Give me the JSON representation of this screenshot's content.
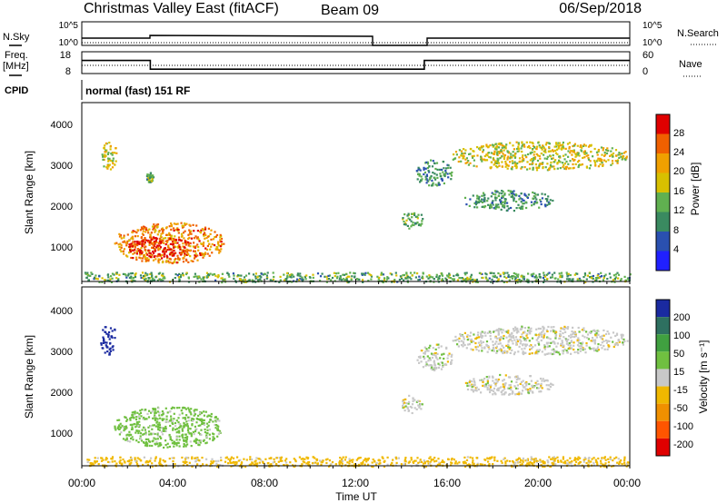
{
  "header": {
    "title": "Christmas Valley East (fitACF)",
    "beam": "Beam 09",
    "date": "06/Sep/2018"
  },
  "nsky_panel": {
    "label": "N.Sky",
    "right_label": "N.Search",
    "yticks_left": [
      "10^5",
      "10^0"
    ],
    "yticks_right": [
      "10^5",
      "10^0"
    ]
  },
  "freq_panel": {
    "label_line1": "Freq.",
    "label_line2": "[MHz]",
    "right_label": "Nave",
    "yticks_left": [
      "18",
      "8"
    ],
    "yticks_right": [
      "60",
      "0"
    ]
  },
  "cpid_panel": {
    "label": "CPID",
    "mode_text": "normal (fast) 151 RF"
  },
  "power_panel": {
    "ylabel": "Slant Range [km]",
    "yticks": [
      "4000",
      "3000",
      "2000",
      "1000"
    ],
    "colorbar_label": "Power [dB]",
    "colorbar_ticks": [
      "28",
      "24",
      "20",
      "16",
      "12",
      "8",
      "4"
    ]
  },
  "velocity_panel": {
    "ylabel": "Slant Range [km]",
    "yticks": [
      "4000",
      "3000",
      "2000",
      "1000"
    ],
    "colorbar_label": "Velocity [m s⁻¹]",
    "colorbar_ticks": [
      "200",
      "100",
      "50",
      "15",
      "-15",
      "-50",
      "-100",
      "-200"
    ]
  },
  "xaxis": {
    "label": "Time UT",
    "ticks": [
      "00:00",
      "04:00",
      "08:00",
      "12:00",
      "16:00",
      "20:00",
      "00:00"
    ]
  },
  "colors": {
    "power_scale": [
      "#2020ff",
      "#2a50b0",
      "#3a8a60",
      "#60b050",
      "#d8c000",
      "#f0a000",
      "#f06000",
      "#e00000"
    ],
    "velocity_scale": [
      "#e00000",
      "#ff5500",
      "#f09000",
      "#f0b800",
      "#c8c8c8",
      "#70c040",
      "#40a040",
      "#2e7060",
      "#1a2aa0"
    ]
  },
  "chart_data": [
    {
      "type": "heatmap",
      "title": "Power",
      "xlabel": "Time UT",
      "ylabel": "Slant Range [km]",
      "xlim": [
        "00:00",
        "24:00"
      ],
      "ylim": [
        180,
        4600
      ],
      "colorbar": {
        "label": "Power [dB]",
        "range": [
          0,
          30
        ],
        "ticks": [
          4,
          8,
          12,
          16,
          20,
          24,
          28
        ]
      },
      "regions": [
        {
          "t0": 0.1,
          "t1": 24.0,
          "r0": 180,
          "r1": 420,
          "power_db": 12
        },
        {
          "t0": 1.4,
          "t1": 6.2,
          "r0": 650,
          "r1": 1650,
          "power_db": 22
        },
        {
          "t0": 2.0,
          "t1": 4.8,
          "r0": 800,
          "r1": 1300,
          "power_db": 29
        },
        {
          "t0": 0.8,
          "t1": 1.5,
          "r0": 2950,
          "r1": 3700,
          "power_db": 18
        },
        {
          "t0": 2.8,
          "t1": 3.1,
          "r0": 2650,
          "r1": 2900,
          "power_db": 12
        },
        {
          "t0": 14.6,
          "t1": 16.2,
          "r0": 2550,
          "r1": 3200,
          "power_db": 10
        },
        {
          "t0": 16.2,
          "t1": 23.9,
          "r0": 2950,
          "r1": 3650,
          "power_db": 17
        },
        {
          "t0": 16.7,
          "t1": 20.6,
          "r0": 1950,
          "r1": 2450,
          "power_db": 10
        },
        {
          "t0": 14.0,
          "t1": 14.9,
          "r0": 1500,
          "r1": 1950,
          "power_db": 12
        }
      ]
    },
    {
      "type": "heatmap",
      "title": "Velocity",
      "xlabel": "Time UT",
      "ylabel": "Slant Range [km]",
      "xlim": [
        "00:00",
        "24:00"
      ],
      "ylim": [
        180,
        4600
      ],
      "colorbar": {
        "label": "Velocity [m s-1]",
        "range": [
          -250,
          250
        ],
        "ticks": [
          200,
          100,
          50,
          15,
          -15,
          -50,
          -100,
          -200
        ]
      },
      "regions": [
        {
          "t0": 0.1,
          "t1": 24.0,
          "r0": 180,
          "r1": 420,
          "velocity": -30
        },
        {
          "t0": 1.4,
          "t1": 6.2,
          "r0": 650,
          "r1": 1650,
          "velocity": 30
        },
        {
          "t0": 0.8,
          "t1": 1.5,
          "r0": 2950,
          "r1": 3700,
          "velocity": 220
        },
        {
          "t0": 14.6,
          "t1": 16.2,
          "r0": 2550,
          "r1": 3200,
          "velocity": 0
        },
        {
          "t0": 16.2,
          "t1": 23.9,
          "r0": 2950,
          "r1": 3650,
          "velocity": 0
        },
        {
          "t0": 16.7,
          "t1": 20.6,
          "r0": 1950,
          "r1": 2450,
          "velocity": 0
        },
        {
          "t0": 14.0,
          "t1": 14.9,
          "r0": 1500,
          "r1": 1950,
          "velocity": 0
        }
      ]
    },
    {
      "type": "line",
      "title": "Frequency",
      "ylabel": "Freq. [MHz]",
      "ylim": [
        8,
        18
      ],
      "series": [
        {
          "name": "Freq.",
          "x": [
            "00:00",
            "03:00",
            "03:00",
            "15:00",
            "15:00",
            "24:00"
          ],
          "values": [
            14,
            14,
            10,
            10,
            14,
            14
          ]
        }
      ]
    }
  ]
}
